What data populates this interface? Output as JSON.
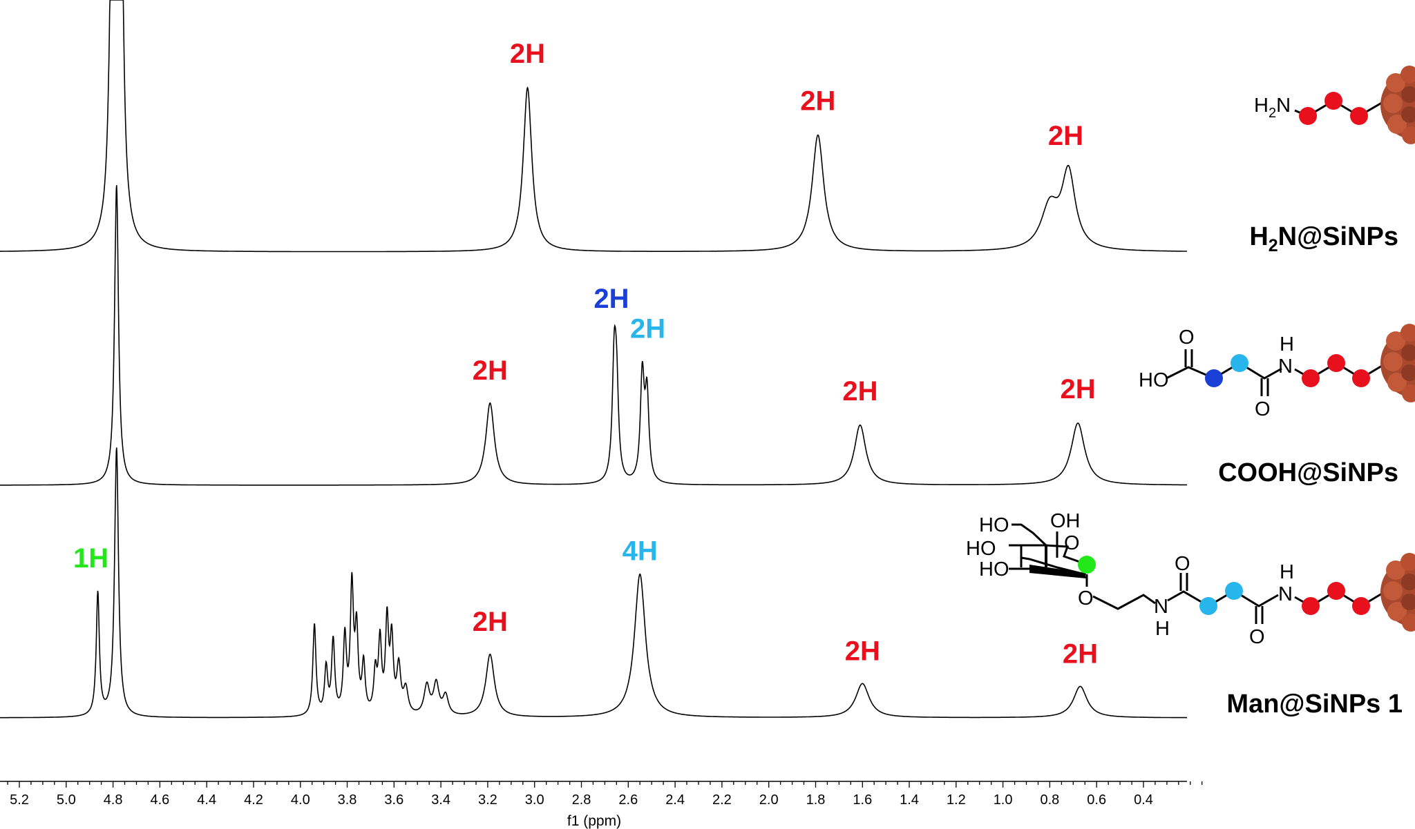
{
  "chart_data": {
    "type": "line",
    "title": "",
    "xlabel": "f1 (ppm)",
    "ylabel": "",
    "x_reversed": true,
    "xlim": [
      5.28,
      0.16
    ],
    "x_ticks": [
      "5.2",
      "5.0",
      "4.8",
      "4.6",
      "4.4",
      "4.2",
      "4.0",
      "3.8",
      "3.6",
      "3.4",
      "3.2",
      "3.0",
      "2.8",
      "2.6",
      "2.4",
      "2.2",
      "2.0",
      "1.8",
      "1.6",
      "1.4",
      "1.2",
      "1.0",
      "0.8",
      "0.6",
      "0.4"
    ],
    "grid": false,
    "legend": "none",
    "series": [
      {
        "name": "H2N@SiNPs",
        "name_main": "H",
        "name_sub": "2",
        "name_rest": "N@SiNPs",
        "peaks": [
          {
            "ppm": 4.8,
            "intensity": 3.0,
            "width": 0.012,
            "label": "",
            "clipped": true
          },
          {
            "ppm": 4.77,
            "intensity": 3.0,
            "width": 0.012,
            "label": "",
            "clipped": true
          },
          {
            "ppm": 3.03,
            "intensity": 0.97,
            "width": 0.022,
            "label": "2H",
            "color": "#e8101c"
          },
          {
            "ppm": 1.79,
            "intensity": 0.69,
            "width": 0.03,
            "label": "2H",
            "color": "#e8101c"
          },
          {
            "ppm": 0.8,
            "intensity": 0.25,
            "width": 0.045,
            "label": "",
            "clipped": false
          },
          {
            "ppm": 0.72,
            "intensity": 0.45,
            "width": 0.035,
            "label": "2H",
            "color": "#e8101c"
          }
        ]
      },
      {
        "name": "COOH@SiNPs",
        "peaks": [
          {
            "ppm": 4.785,
            "intensity": 3.0,
            "width": 0.01,
            "label": "",
            "clipped": true
          },
          {
            "ppm": 3.19,
            "intensity": 0.82,
            "width": 0.022,
            "label": "2H",
            "color": "#e8101c"
          },
          {
            "ppm": 2.66,
            "intensity": 1.1,
            "width": 0.01,
            "label": "2H",
            "color": "#1a3fd6"
          },
          {
            "ppm": 2.65,
            "intensity": 0.85,
            "width": 0.01,
            "label": "",
            "clipped": false
          },
          {
            "ppm": 2.54,
            "intensity": 1.05,
            "width": 0.01,
            "label": "2H",
            "color": "#27b5ec"
          },
          {
            "ppm": 2.52,
            "intensity": 0.85,
            "width": 0.01,
            "label": "",
            "clipped": false
          },
          {
            "ppm": 1.61,
            "intensity": 0.6,
            "width": 0.03,
            "label": "2H",
            "color": "#e8101c"
          },
          {
            "ppm": 0.68,
            "intensity": 0.62,
            "width": 0.035,
            "label": "2H",
            "color": "#e8101c"
          }
        ]
      },
      {
        "name": "Man@SiNPs 1",
        "peaks": [
          {
            "ppm": 4.865,
            "intensity": 1.37,
            "width": 0.008,
            "label": "1H",
            "color": "#22e81a"
          },
          {
            "ppm": 4.785,
            "intensity": 3.0,
            "width": 0.01,
            "label": "",
            "clipped": true
          },
          {
            "ppm": 3.94,
            "intensity": 1.02,
            "width": 0.008,
            "label": "",
            "clipped": false
          },
          {
            "ppm": 3.89,
            "intensity": 0.52,
            "width": 0.008,
            "label": "",
            "clipped": false
          },
          {
            "ppm": 3.86,
            "intensity": 0.82,
            "width": 0.008,
            "label": "",
            "clipped": false
          },
          {
            "ppm": 3.81,
            "intensity": 0.85,
            "width": 0.008,
            "label": "",
            "clipped": false
          },
          {
            "ppm": 3.78,
            "intensity": 1.4,
            "width": 0.008,
            "label": "",
            "clipped": false
          },
          {
            "ppm": 3.76,
            "intensity": 0.9,
            "width": 0.008,
            "label": "",
            "clipped": false
          },
          {
            "ppm": 3.73,
            "intensity": 0.55,
            "width": 0.008,
            "label": "",
            "clipped": false
          },
          {
            "ppm": 3.68,
            "intensity": 0.45,
            "width": 0.008,
            "label": "",
            "clipped": false
          },
          {
            "ppm": 3.66,
            "intensity": 0.8,
            "width": 0.008,
            "label": "",
            "clipped": false
          },
          {
            "ppm": 3.63,
            "intensity": 1.02,
            "width": 0.008,
            "label": "",
            "clipped": false
          },
          {
            "ppm": 3.61,
            "intensity": 0.8,
            "width": 0.008,
            "label": "",
            "clipped": false
          },
          {
            "ppm": 3.58,
            "intensity": 0.52,
            "width": 0.01,
            "label": "",
            "clipped": false
          },
          {
            "ppm": 3.55,
            "intensity": 0.28,
            "width": 0.012,
            "label": "",
            "clipped": false
          },
          {
            "ppm": 3.46,
            "intensity": 0.33,
            "width": 0.014,
            "label": "",
            "clipped": false
          },
          {
            "ppm": 3.42,
            "intensity": 0.35,
            "width": 0.014,
            "label": "",
            "clipped": false
          },
          {
            "ppm": 3.38,
            "intensity": 0.22,
            "width": 0.014,
            "label": "",
            "clipped": false
          },
          {
            "ppm": 3.19,
            "intensity": 0.7,
            "width": 0.022,
            "label": "2H",
            "color": "#e8101c"
          },
          {
            "ppm": 2.55,
            "intensity": 1.6,
            "width": 0.028,
            "label": "4H",
            "color": "#27b5ec"
          },
          {
            "ppm": 1.6,
            "intensity": 0.38,
            "width": 0.035,
            "label": "2H",
            "color": "#e8101c"
          },
          {
            "ppm": 0.67,
            "intensity": 0.35,
            "width": 0.035,
            "label": "2H",
            "color": "#e8101c"
          }
        ]
      }
    ]
  },
  "structures": {
    "amine_group": {
      "main": "H",
      "sub": "2",
      "rest": "N"
    },
    "cooh": {
      "o_top": "O",
      "ho": "HO",
      "nh_h": "H",
      "nh_n": "N",
      "o_bottom": "O"
    },
    "mannose": {
      "ho_top": "HO",
      "oh_top": "OH",
      "ho_mid": "HO",
      "ho_low": "HO",
      "ring_o": "O",
      "link_o": "O",
      "amide_n": "N",
      "amide_h": "H",
      "o_top": "O",
      "nh2_h": "H",
      "nh2_n": "N",
      "o_bottom": "O"
    }
  },
  "colors": {
    "propyl_dot": "#e8101c",
    "succ_dark_blue": "#1a3fd6",
    "succ_light_blue": "#27b5ec",
    "anomeric_green": "#22e81a",
    "nanoparticle": "#a8482c",
    "trace": "#000000"
  }
}
